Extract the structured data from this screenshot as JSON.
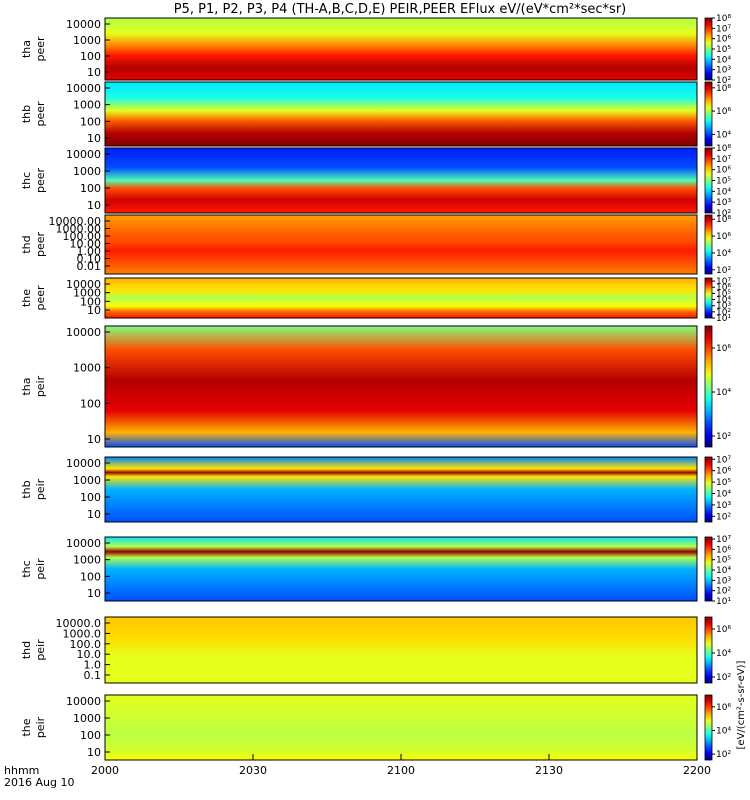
{
  "chart_data": {
    "type": "heatmap",
    "title": "P5, P1, P2, P3, P4 (TH-A,B,C,D,E) PEIR,PEER EFlux eV/(eV*cm²*sec*sr)",
    "x_axis": {
      "ticks": [
        "2000",
        "2030",
        "2100",
        "2130",
        "2200"
      ],
      "label_line1": "hhmm",
      "label_line2": "2016 Aug 10"
    },
    "colorbar_units": "[eV/(cm²-s-sr-eV)]",
    "panels": [
      {
        "label_top": "tha",
        "label_bottom": "peer",
        "yticks": [
          "10",
          "100",
          "1000",
          "10000"
        ],
        "cbticks": [
          "10²",
          "10³",
          "10⁴",
          "10⁵",
          "10⁶",
          "10⁷",
          "10⁸"
        ],
        "cbmin": 2,
        "cbmax": 8
      },
      {
        "label_top": "thb",
        "label_bottom": "peer",
        "yticks": [
          "10",
          "100",
          "1000",
          "10000"
        ],
        "cbticks": [
          "10⁴",
          "10⁶",
          "10⁸"
        ],
        "cbmin": 3,
        "cbmax": 8.5
      },
      {
        "label_top": "thc",
        "label_bottom": "peer",
        "yticks": [
          "10",
          "100",
          "1000",
          "10000"
        ],
        "cbticks": [
          "10²",
          "10³",
          "10⁴",
          "10⁵",
          "10⁶",
          "10⁷",
          "10⁸"
        ],
        "cbmin": 2,
        "cbmax": 8
      },
      {
        "label_top": "thd",
        "label_bottom": "peer",
        "yticks": [
          "0.01",
          "0.10",
          "1.00",
          "10.00",
          "100.00",
          "1000.00",
          "10000.00"
        ],
        "cbticks": [
          "10²",
          "10⁴",
          "10⁶",
          "10⁸"
        ],
        "cbmin": 1.5,
        "cbmax": 8.5
      },
      {
        "label_top": "the",
        "label_bottom": "peer",
        "yticks": [
          "10",
          "100",
          "1000",
          "10000"
        ],
        "cbticks": [
          "10¹",
          "10²",
          "10³",
          "10⁴",
          "10⁵",
          "10⁶",
          "10⁷"
        ],
        "cbmin": 1,
        "cbmax": 7.5
      },
      {
        "label_top": "tha",
        "label_bottom": "peir",
        "yticks": [
          "10",
          "100",
          "1000",
          "10000"
        ],
        "cbticks": [
          "10²",
          "10⁴",
          "10⁶"
        ],
        "cbmin": 1.5,
        "cbmax": 7
      },
      {
        "label_top": "thb",
        "label_bottom": "peir",
        "yticks": [
          "10",
          "100",
          "1000",
          "10000"
        ],
        "cbticks": [
          "10²",
          "10³",
          "10⁴",
          "10⁵",
          "10⁶",
          "10⁷"
        ],
        "cbmin": 1.5,
        "cbmax": 7.2
      },
      {
        "label_top": "thc",
        "label_bottom": "peir",
        "yticks": [
          "10",
          "100",
          "1000",
          "10000"
        ],
        "cbticks": [
          "10¹",
          "10²",
          "10³",
          "10⁴",
          "10⁵",
          "10⁶",
          "10⁷"
        ],
        "cbmin": 1,
        "cbmax": 7.2
      },
      {
        "label_top": "thd",
        "label_bottom": "peir",
        "yticks": [
          "0.1",
          "1.0",
          "10.0",
          "100.0",
          "1000.0",
          "10000.0"
        ],
        "cbticks": [
          "10²",
          "10⁴",
          "10⁶"
        ],
        "cbmin": 1.5,
        "cbmax": 7
      },
      {
        "label_top": "the",
        "label_bottom": "peir",
        "yticks": [
          "10",
          "100",
          "1000",
          "10000"
        ],
        "cbticks": [
          "10²",
          "10⁴",
          "10⁶"
        ],
        "cbmin": 1.5,
        "cbmax": 7
      }
    ]
  }
}
